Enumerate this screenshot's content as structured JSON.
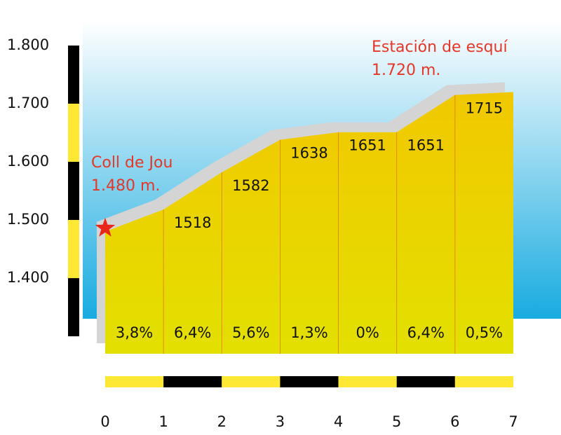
{
  "chart_data": {
    "type": "area",
    "x": [
      0,
      1,
      2,
      3,
      4,
      5,
      6,
      7
    ],
    "xlim": [
      0,
      7
    ],
    "xticks": [
      0,
      1,
      2,
      3,
      4,
      5,
      6,
      7
    ],
    "values": [
      1480,
      1518,
      1582,
      1638,
      1651,
      1651,
      1715,
      1720
    ],
    "color": "#e8d400",
    "ylim": [
      1270,
      1800
    ],
    "yticks": [
      {
        "value": 1800,
        "label": "1.800"
      },
      {
        "value": 1700,
        "label": "1.700"
      },
      {
        "value": 1600,
        "label": "1.600"
      },
      {
        "value": 1500,
        "label": "1.500"
      },
      {
        "value": 1400,
        "label": "1.400"
      }
    ],
    "annotations": [
      {
        "text": "Coll de Jou",
        "label": "1.480 m.",
        "index": 0
      },
      {
        "text": "Estación de esquí",
        "label": "1.720 m.",
        "index": 7
      }
    ],
    "gradients": {
      "values": [
        3.8,
        6.4,
        5.6,
        1.3,
        0,
        6.4,
        0.5
      ],
      "value_labels": [
        "3,8%",
        "6,4%",
        "5,6%",
        "1,3%",
        "0%",
        "6,4%",
        "0,5%"
      ]
    }
  }
}
